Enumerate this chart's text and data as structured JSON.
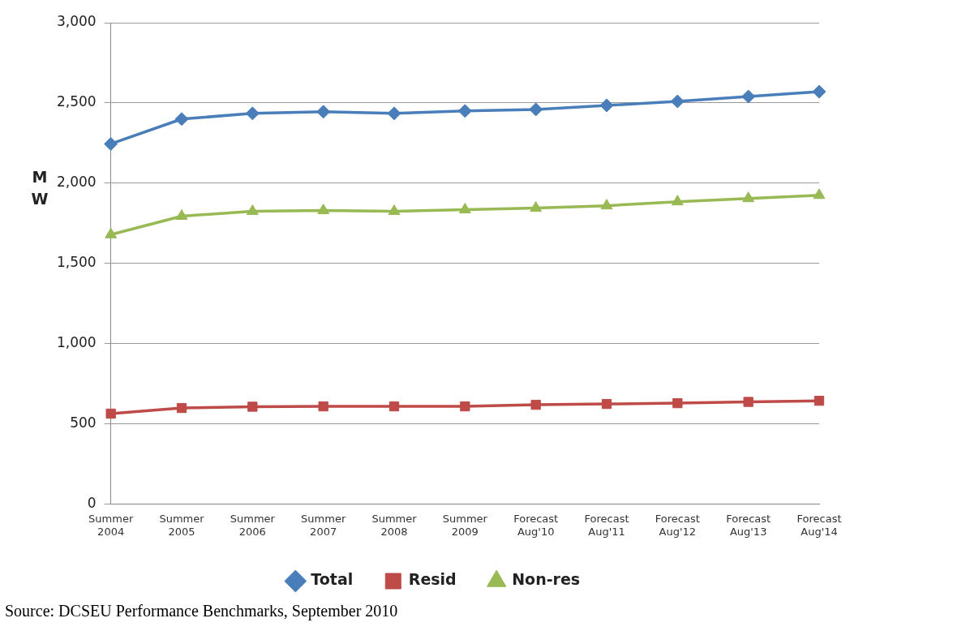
{
  "chart_data": {
    "type": "line",
    "ylabel": "MW",
    "categories": [
      "Summer 2004",
      "Summer 2005",
      "Summer 2006",
      "Summer 2007",
      "Summer 2008",
      "Summer 2009",
      "Forecast Aug'10",
      "Forecast Aug'11",
      "Forecast Aug'12",
      "Forecast Aug'13",
      "Forecast Aug'14"
    ],
    "series": [
      {
        "name": "Total",
        "color": "#4a7ebb",
        "marker": "diamond",
        "values": [
          2245,
          2400,
          2435,
          2445,
          2435,
          2450,
          2460,
          2485,
          2510,
          2540,
          2570
        ]
      },
      {
        "name": "Resid",
        "color": "#be4b48",
        "marker": "square",
        "values": [
          565,
          600,
          608,
          610,
          610,
          610,
          620,
          625,
          630,
          638,
          645
        ]
      },
      {
        "name": "Non-res",
        "color": "#98b954",
        "marker": "triangle",
        "values": [
          1680,
          1795,
          1825,
          1830,
          1825,
          1835,
          1845,
          1860,
          1885,
          1905,
          1925
        ]
      }
    ],
    "ylim": [
      0,
      3000
    ],
    "yticks": [
      {
        "value": 0,
        "label": "0"
      },
      {
        "value": 500,
        "label": "500"
      },
      {
        "value": 1000,
        "label": "1,000"
      },
      {
        "value": 1500,
        "label": "1,500"
      },
      {
        "value": 2000,
        "label": "2,000"
      },
      {
        "value": 2500,
        "label": "2,500"
      },
      {
        "value": 3000,
        "label": "3,000"
      }
    ],
    "grid": "y",
    "legend": "bottom",
    "line_style": "solid",
    "annotations": [
      "Source: DCSEU Performance Benchmarks, September 2010"
    ]
  }
}
